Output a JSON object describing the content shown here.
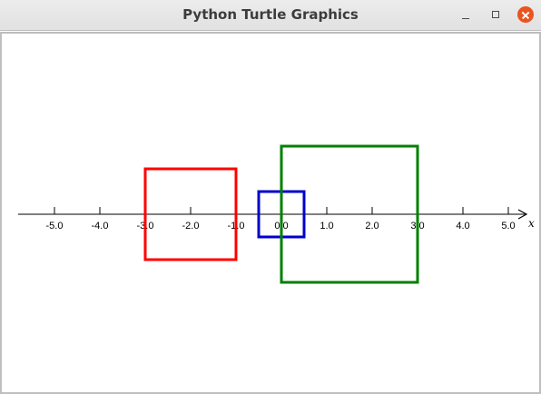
{
  "window": {
    "title": "Python Turtle Graphics",
    "controls": [
      "minimize",
      "maximize",
      "close"
    ],
    "accent_close": "#e95420"
  },
  "canvas": {
    "background": "#ffffff",
    "axis_label": "x",
    "tick_values": [
      -5,
      -4,
      -3,
      -2,
      -1,
      0,
      1,
      2,
      3,
      4,
      5
    ],
    "tick_labels": [
      "-5.0",
      "-4.0",
      "-3.0",
      "-2.0",
      "-1.0",
      "0.0",
      "1.0",
      "2.0",
      "3.0",
      "4.0",
      "5.0"
    ],
    "x_range": [
      -5.6,
      5.6
    ],
    "squares": [
      {
        "color": "#ff0000",
        "x0": -3.0,
        "x1": -1.0,
        "y0": -1.0,
        "y1": 1.0
      },
      {
        "color": "#0000cc",
        "x0": -0.5,
        "x1": 0.5,
        "y0": -0.5,
        "y1": 0.5
      },
      {
        "color": "#008000",
        "x0": 0.0,
        "x1": 3.0,
        "y0": -1.5,
        "y1": 1.5
      }
    ]
  }
}
